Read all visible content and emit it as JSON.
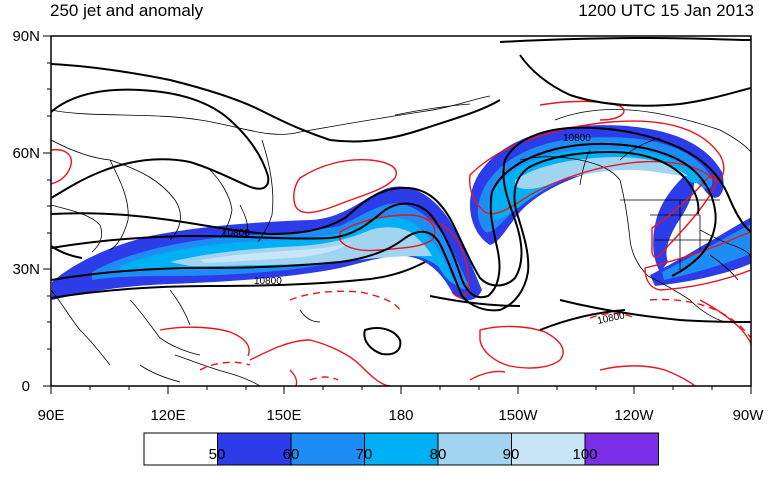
{
  "title_left": "250 jet and anomaly",
  "title_right": "1200 UTC 15 Jan 2013",
  "lat_labels": [
    "90N",
    "60N",
    "30N",
    "0"
  ],
  "lon_labels": [
    "90E",
    "120E",
    "150E",
    "180",
    "150W",
    "120W",
    "90W"
  ],
  "contour_labels": [
    "10800",
    "10800",
    "10800",
    "10800"
  ],
  "colorbar": {
    "labels": [
      "50",
      "60",
      "70",
      "80",
      "90",
      "100"
    ],
    "colors": [
      "#ffffff",
      "#2b3ce8",
      "#1e8cf5",
      "#00b0f5",
      "#a0d4f0",
      "#c8e6f7",
      "#7b2ee8"
    ]
  },
  "colors": {
    "jet_50": "#2b3ce8",
    "jet_60": "#1e8cf5",
    "jet_70": "#00b0f5",
    "jet_80": "#a0d4f0",
    "jet_90": "#c8e6f7",
    "anomaly": "#e8141e",
    "height_contour": "#000000",
    "coastline": "#000000"
  }
}
